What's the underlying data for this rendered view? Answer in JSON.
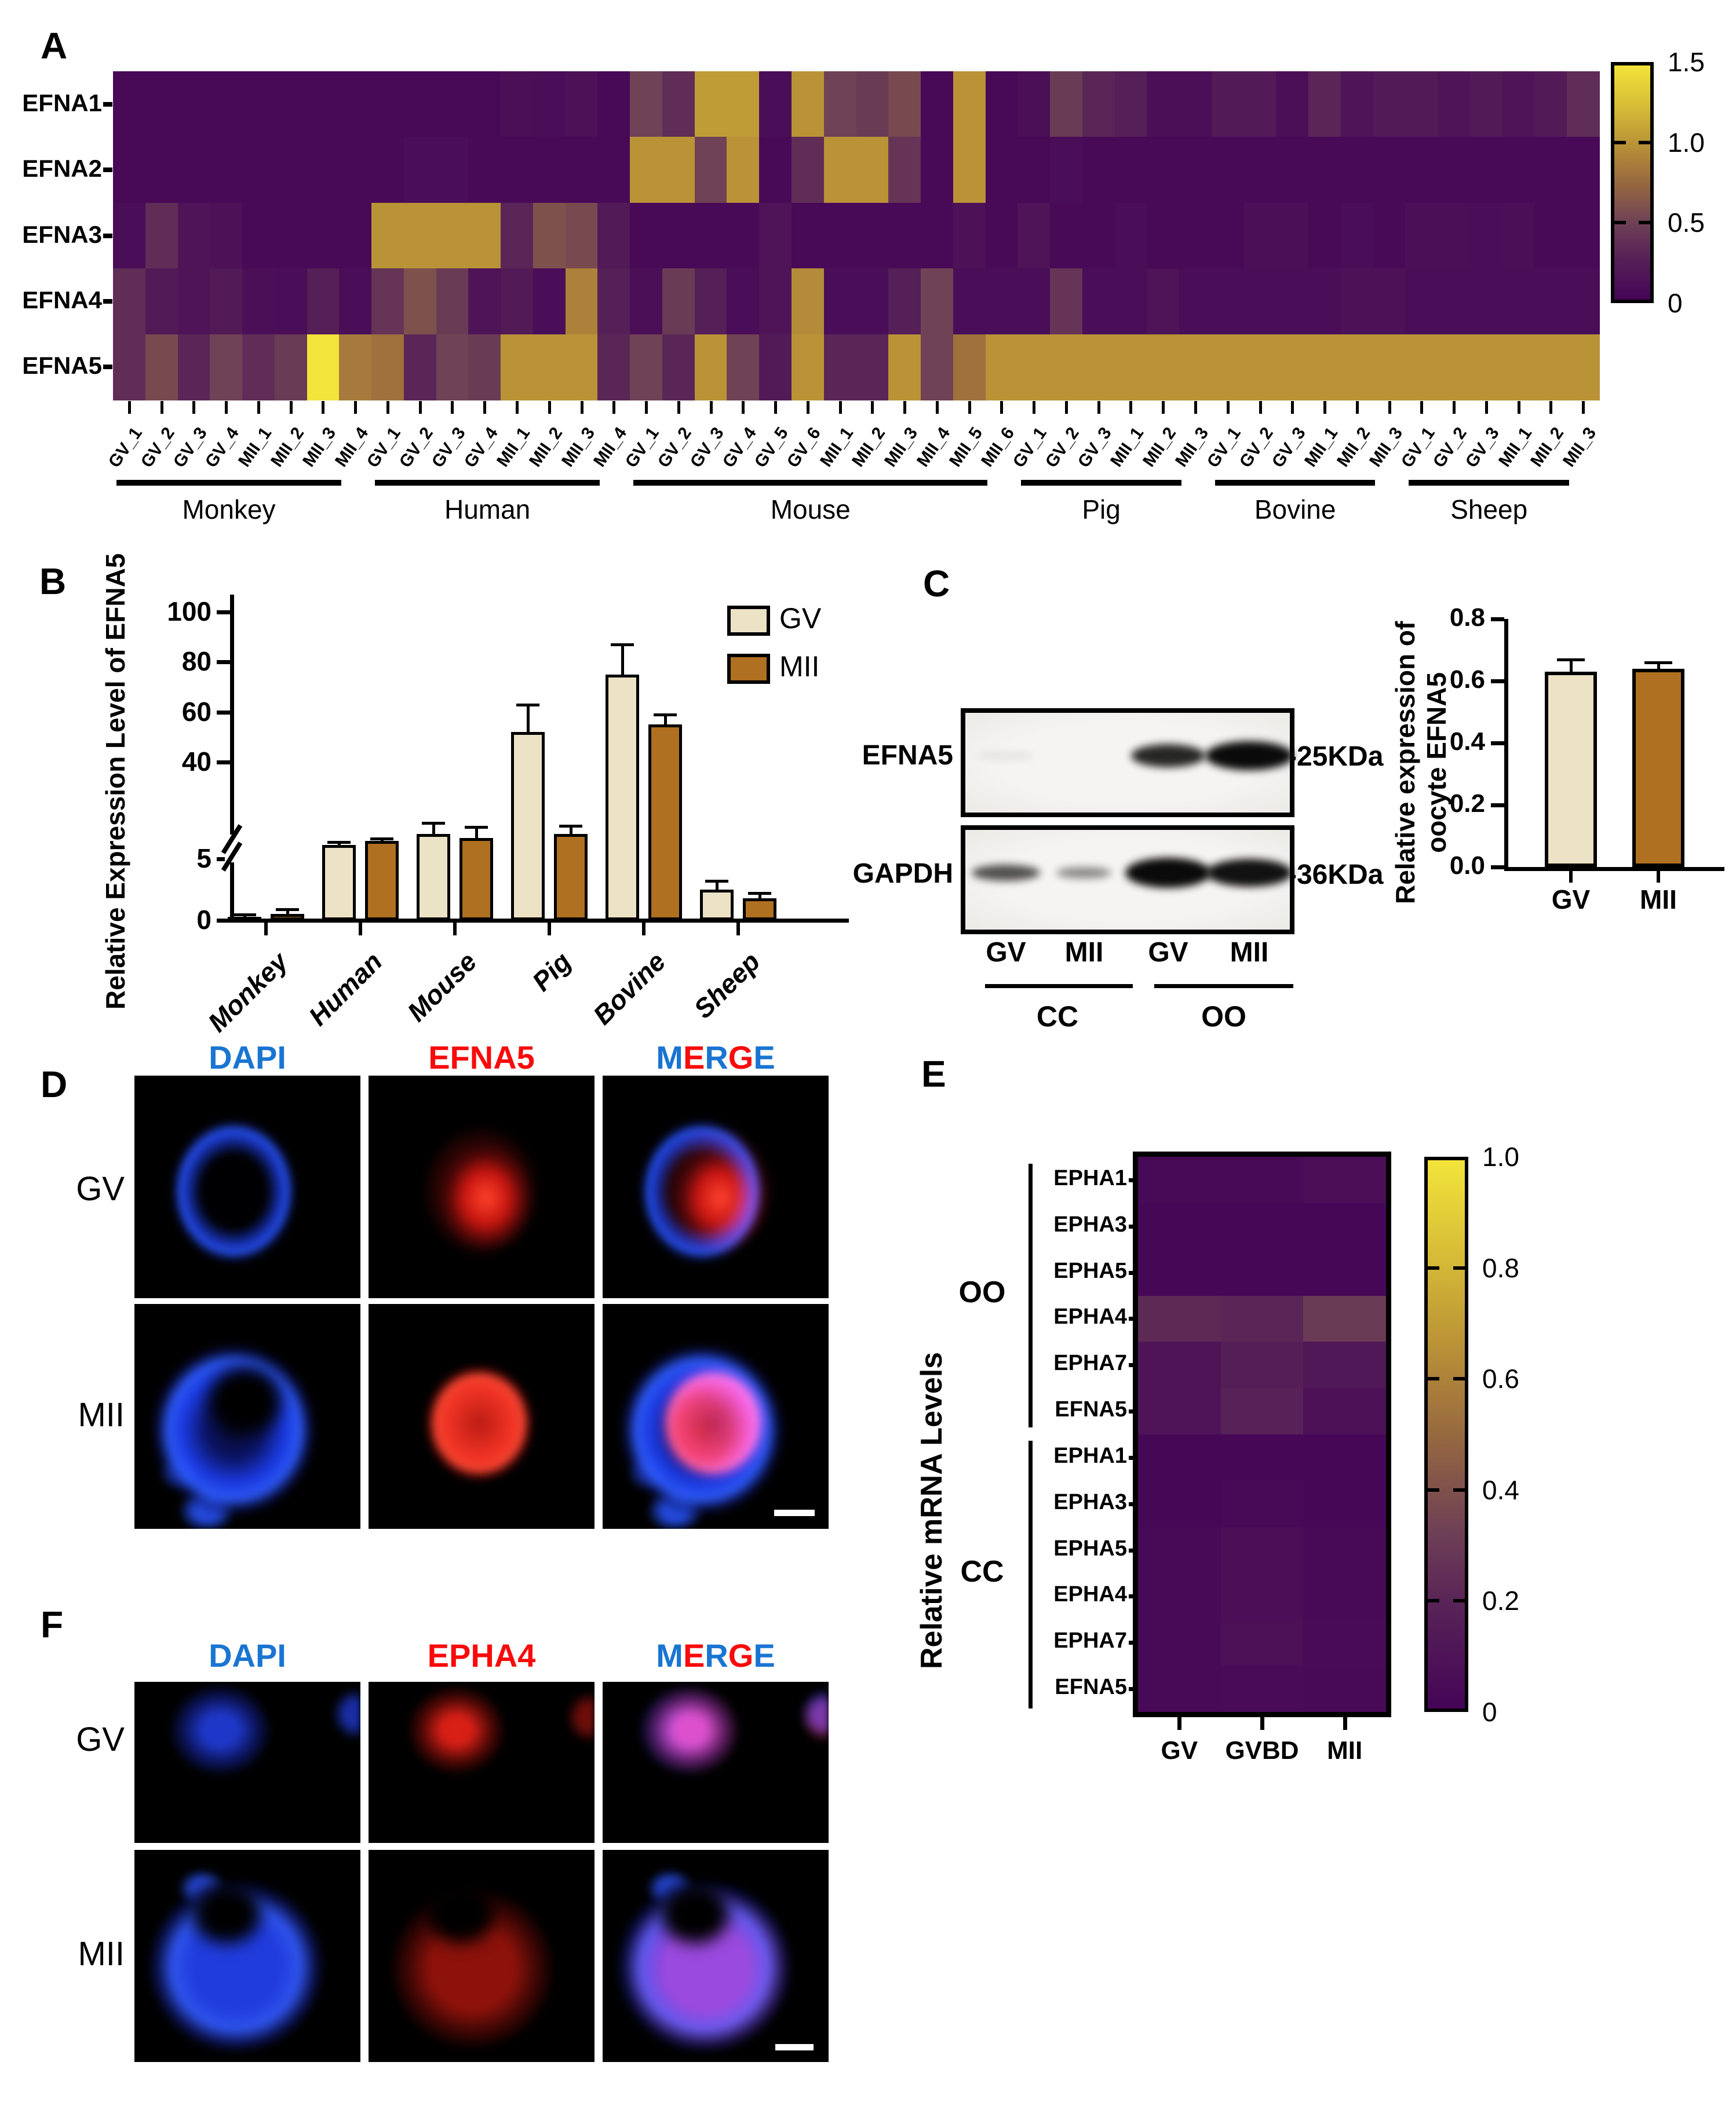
{
  "colormap": {
    "stops": [
      [
        0,
        "#450457"
      ],
      [
        0.17,
        "#552057"
      ],
      [
        0.33,
        "#6f4155"
      ],
      [
        0.5,
        "#97693f"
      ],
      [
        0.67,
        "#bb9437"
      ],
      [
        0.83,
        "#d7bd37"
      ],
      [
        1,
        "#f2e43a"
      ]
    ]
  },
  "panels": {
    "A": {
      "label": "A",
      "row_labels": [
        "EFNA1",
        "EFNA2",
        "EFNA3",
        "EFNA4",
        "EFNA5"
      ],
      "col_labels": [
        "GV_1",
        "GV_2",
        "GV_3",
        "GV_4",
        "MII_1",
        "MII_2",
        "MII_3",
        "MII_4",
        "GV_1",
        "GV_2",
        "GV_3",
        "GV_4",
        "MII_1",
        "MII_2",
        "MII_3",
        "MII_4",
        "GV_1",
        "GV_2",
        "GV_3",
        "GV_4",
        "GV_5",
        "GV_6",
        "MII_1",
        "MII_2",
        "MII_3",
        "MII_4",
        "MII_5",
        "MII_6",
        "GV_1",
        "GV_2",
        "GV_3",
        "MII_1",
        "MII_2",
        "MII_3",
        "GV_1",
        "GV_2",
        "GV_3",
        "MII_1",
        "MII_2",
        "MII_3",
        "GV_1",
        "GV_2",
        "GV_3",
        "MII_1",
        "MII_2",
        "MII_3"
      ],
      "groups": [
        {
          "name": "Monkey",
          "count": 8
        },
        {
          "name": "Human",
          "count": 8
        },
        {
          "name": "Mouse",
          "count": 12
        },
        {
          "name": "Pig",
          "count": 6
        },
        {
          "name": "Bovine",
          "count": 6
        },
        {
          "name": "Sheep",
          "count": 6
        }
      ],
      "vmax": 1.5,
      "colorbar_ticks": [
        {
          "v": 1.5,
          "label": "1.5"
        },
        {
          "v": 1.0,
          "label": "1.0"
        },
        {
          "v": 0.5,
          "label": "0.5"
        },
        {
          "v": 0,
          "label": "0"
        }
      ],
      "values": [
        [
          0.05,
          0.05,
          0.05,
          0.05,
          0.05,
          0.05,
          0.05,
          0.05,
          0.05,
          0.05,
          0.05,
          0.05,
          0.1,
          0.08,
          0.12,
          0.05,
          0.5,
          0.35,
          1.05,
          1.05,
          0.08,
          1.0,
          0.5,
          0.45,
          0.55,
          0.05,
          1.0,
          0.05,
          0.1,
          0.45,
          0.3,
          0.25,
          0.1,
          0.1,
          0.2,
          0.2,
          0.1,
          0.3,
          0.15,
          0.2,
          0.2,
          0.15,
          0.2,
          0.15,
          0.2,
          0.35
        ],
        [
          0.05,
          0.05,
          0.05,
          0.05,
          0.05,
          0.05,
          0.05,
          0.05,
          0.05,
          0.08,
          0.08,
          0.05,
          0.05,
          0.05,
          0.05,
          0.05,
          1.0,
          1.0,
          0.5,
          1.0,
          0.05,
          0.35,
          1.0,
          1.0,
          0.4,
          0.05,
          1.0,
          0.05,
          0.05,
          0.08,
          0.05,
          0.05,
          0.05,
          0.05,
          0.05,
          0.05,
          0.05,
          0.05,
          0.05,
          0.05,
          0.05,
          0.05,
          0.05,
          0.05,
          0.05,
          0.05
        ],
        [
          0.08,
          0.35,
          0.15,
          0.12,
          0.05,
          0.05,
          0.05,
          0.05,
          1.0,
          1.0,
          1.0,
          1.0,
          0.3,
          0.6,
          0.55,
          0.2,
          0.05,
          0.05,
          0.05,
          0.05,
          0.15,
          0.05,
          0.05,
          0.05,
          0.05,
          0.05,
          0.12,
          0.05,
          0.15,
          0.05,
          0.05,
          0.08,
          0.05,
          0.05,
          0.05,
          0.1,
          0.1,
          0.05,
          0.08,
          0.05,
          0.1,
          0.1,
          0.08,
          0.1,
          0.05,
          0.05
        ],
        [
          0.35,
          0.2,
          0.15,
          0.2,
          0.1,
          0.08,
          0.25,
          0.08,
          0.4,
          0.6,
          0.45,
          0.15,
          0.2,
          0.08,
          0.9,
          0.25,
          0.1,
          0.45,
          0.25,
          0.08,
          0.15,
          0.95,
          0.08,
          0.08,
          0.25,
          0.5,
          0.08,
          0.08,
          0.08,
          0.4,
          0.08,
          0.08,
          0.15,
          0.08,
          0.08,
          0.08,
          0.08,
          0.08,
          0.12,
          0.12,
          0.08,
          0.08,
          0.08,
          0.08,
          0.08,
          0.08
        ],
        [
          0.35,
          0.55,
          0.3,
          0.5,
          0.35,
          0.45,
          1.5,
          0.85,
          0.8,
          0.3,
          0.5,
          0.45,
          1.0,
          1.0,
          1.0,
          0.3,
          0.5,
          0.3,
          1.0,
          0.5,
          0.2,
          1.0,
          0.3,
          0.3,
          1.0,
          0.5,
          0.8,
          1.0,
          1.0,
          1.0,
          1.0,
          1.0,
          1.0,
          1.0,
          1.0,
          1.0,
          1.0,
          1.0,
          1.0,
          1.0,
          1.0,
          1.0,
          1.0,
          1.0,
          1.0,
          1.0
        ]
      ]
    },
    "B": {
      "label": "B",
      "ylabel": "Relative Expression Level of EFNA5",
      "yticks": [
        {
          "v": 100,
          "label": "100"
        },
        {
          "v": 80,
          "label": "80"
        },
        {
          "v": 60,
          "label": "60"
        },
        {
          "v": 40,
          "label": "40"
        },
        {
          "v": 5,
          "label": "5"
        },
        {
          "v": 0,
          "label": "0"
        }
      ],
      "axis_break": true,
      "categories": [
        "Monkey",
        "Human",
        "Mouse",
        "Pig",
        "Bovine",
        "Sheep"
      ],
      "series": [
        {
          "name": "GV",
          "color": "#ece2c5",
          "values": [
            0.3,
            10,
            14,
            52,
            75,
            2.5
          ],
          "errors": [
            0.15,
            1,
            4,
            11,
            12,
            0.7
          ]
        },
        {
          "name": "MII",
          "color": "#af7021",
          "values": [
            0.5,
            11.5,
            12.5,
            14,
            55,
            1.8
          ],
          "errors": [
            0.4,
            0.8,
            4,
            3,
            4,
            0.4
          ]
        }
      ]
    },
    "C": {
      "label": "C",
      "lane_fracs": [
        0.14,
        0.38,
        0.64,
        0.89
      ],
      "lane_labels": [
        "GV",
        "MII",
        "GV",
        "MII"
      ],
      "group_labels": [
        "CC",
        "OO"
      ],
      "blots": [
        {
          "target": "EFNA5",
          "size_label": "-25KDa",
          "bands": [
            {
              "lane": 0,
              "w": 100,
              "h": 12,
              "opacity": 0.08
            },
            {
              "lane": 2,
              "w": 128,
              "h": 40,
              "opacity": 0.88
            },
            {
              "lane": 3,
              "w": 152,
              "h": 50,
              "opacity": 1
            }
          ]
        },
        {
          "target": "GAPDH",
          "size_label": "-36KDa",
          "bands": [
            {
              "lane": 0,
              "w": 118,
              "h": 28,
              "opacity": 0.7
            },
            {
              "lane": 1,
              "w": 95,
              "h": 20,
              "opacity": 0.45
            },
            {
              "lane": 2,
              "w": 148,
              "h": 52,
              "opacity": 1
            },
            {
              "lane": 3,
              "w": 148,
              "h": 48,
              "opacity": 0.97
            }
          ]
        }
      ],
      "chart": {
        "ylabel_line1": "Relative expression of",
        "ylabel_line2": "oocyte EFNA5",
        "ymax": 0.8,
        "yticks": [
          {
            "v": 0.8,
            "label": "0.8"
          },
          {
            "v": 0.6,
            "label": "0.6"
          },
          {
            "v": 0.4,
            "label": "0.4"
          },
          {
            "v": 0.2,
            "label": "0.2"
          },
          {
            "v": 0,
            "label": "0.0"
          }
        ],
        "categories": [
          "GV",
          "MII"
        ],
        "values": [
          0.63,
          0.64
        ],
        "errors": [
          0.04,
          0.02
        ],
        "colors": [
          "#ece2c5",
          "#af7021"
        ]
      }
    },
    "D": {
      "label": "D",
      "channels": [
        {
          "text": "DAPI",
          "color": "#1a75d2"
        },
        {
          "text": "EFNA5",
          "color": "#f80b0b"
        },
        {
          "text": "MERGE"
        }
      ],
      "merge_letters": [
        [
          "M",
          "#1a75d2"
        ],
        [
          "E",
          "#f80b0b"
        ],
        [
          "R",
          "#1a75d2"
        ],
        [
          "G",
          "#f80b0b"
        ],
        [
          "E",
          "#1a75d2"
        ]
      ],
      "rows": [
        "GV",
        "MII"
      ]
    },
    "E": {
      "label": "E",
      "ylabel": "Relative mRNA Levels",
      "group_labels": [
        "OO",
        "CC"
      ],
      "row_labels": [
        "EPHA1",
        "EPHA3",
        "EPHA5",
        "EPHA4",
        "EPHA7",
        "EFNA5",
        "EPHA1",
        "EPHA3",
        "EPHA5",
        "EPHA4",
        "EPHA7",
        "EFNA5"
      ],
      "col_labels": [
        "GV",
        "GVBD",
        "MII"
      ],
      "vmax": 1.0,
      "colorbar_ticks": [
        {
          "v": 1.0,
          "label": "1.0"
        },
        {
          "v": 0.8,
          "label": "0.8"
        },
        {
          "v": 0.6,
          "label": "0.6"
        },
        {
          "v": 0.4,
          "label": "0.4"
        },
        {
          "v": 0.2,
          "label": "0.2"
        },
        {
          "v": 0,
          "label": "0"
        }
      ],
      "values": [
        [
          0.03,
          0.03,
          0.06
        ],
        [
          0.02,
          0.02,
          0.02
        ],
        [
          0.02,
          0.02,
          0.02
        ],
        [
          0.22,
          0.2,
          0.3
        ],
        [
          0.1,
          0.16,
          0.12
        ],
        [
          0.1,
          0.18,
          0.08
        ],
        [
          0.02,
          0.02,
          0.02
        ],
        [
          0.02,
          0.03,
          0.02
        ],
        [
          0.03,
          0.06,
          0.03
        ],
        [
          0.03,
          0.06,
          0.03
        ],
        [
          0.03,
          0.07,
          0.04
        ],
        [
          0.03,
          0.04,
          0.03
        ]
      ]
    },
    "F": {
      "label": "F",
      "channels": [
        {
          "text": "DAPI",
          "color": "#1a75d2"
        },
        {
          "text": "EPHA4",
          "color": "#f80b0b"
        },
        {
          "text": "MERGE"
        }
      ],
      "merge_letters": [
        [
          "M",
          "#1a75d2"
        ],
        [
          "E",
          "#f80b0b"
        ],
        [
          "R",
          "#1a75d2"
        ],
        [
          "G",
          "#f80b0b"
        ],
        [
          "E",
          "#1a75d2"
        ]
      ],
      "rows": [
        "GV",
        "MII"
      ]
    }
  }
}
